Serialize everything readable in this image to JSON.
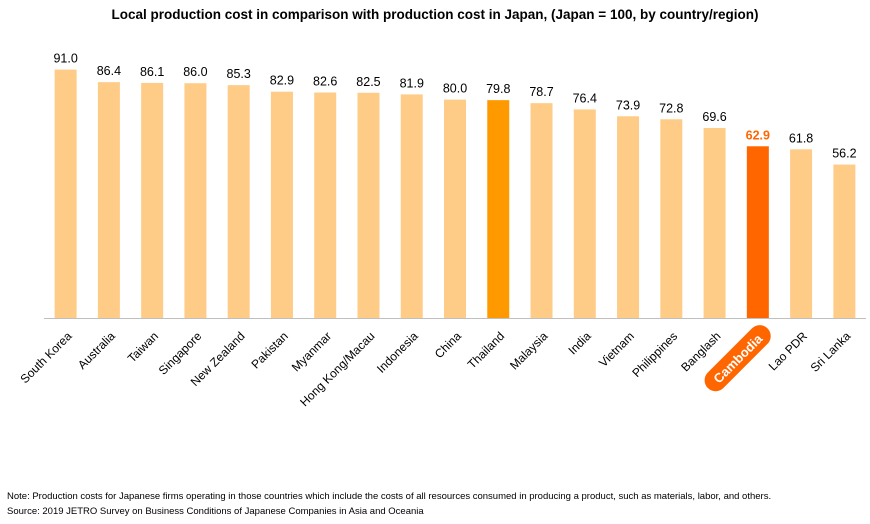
{
  "colors": {
    "bar": "#ffcc88",
    "highlight_bar": "#ff9900",
    "accent_bar": "#ff6600",
    "axis": "#bfbfbf",
    "accent_label": "#ff6600",
    "pill_text": "#ffffff"
  },
  "footer": {
    "note": "Note: Production costs for Japanese firms operating in those countries which include the costs of all resources consumed in producing a product, such as materials, labor, and others.",
    "source": "Source: 2019 JETRO Survey on Business Conditions of Japanese Companies in Asia and Oceania"
  },
  "chart_data": {
    "type": "bar",
    "title": "Local production cost in comparison with production cost in Japan, (Japan = 100, by country/region)",
    "xlabel": "",
    "ylabel": "",
    "ylim": [
      0,
      100
    ],
    "grid": false,
    "legend": "none",
    "categories": [
      "South Korea",
      "Australia",
      "Taiwan",
      "Singapore",
      "New Zealand",
      "Pakistan",
      "Myanmar",
      "Hong Kong/Macau",
      "Indonesia",
      "China",
      "Thailand",
      "Malaysia",
      "India",
      "Vietnam",
      "Philippines",
      "Banglash",
      "Cambodia",
      "Lao PDR",
      "Sri Lanka"
    ],
    "values": [
      91.0,
      86.4,
      86.1,
      86.0,
      85.3,
      82.9,
      82.6,
      82.5,
      81.9,
      80.0,
      79.8,
      78.7,
      76.4,
      73.9,
      72.8,
      69.6,
      62.9,
      61.8,
      56.2
    ],
    "value_labels": [
      "91.0",
      "86.4",
      "86.1",
      "86.0",
      "85.3",
      "82.9",
      "82.6",
      "82.5",
      "81.9",
      "80.0",
      "79.8",
      "78.7",
      "76.4",
      "73.9",
      "72.8",
      "69.6",
      "62.9",
      "61.8",
      "56.2"
    ],
    "highlighted": [
      "Thailand"
    ],
    "emphasized": [
      "Cambodia"
    ]
  }
}
